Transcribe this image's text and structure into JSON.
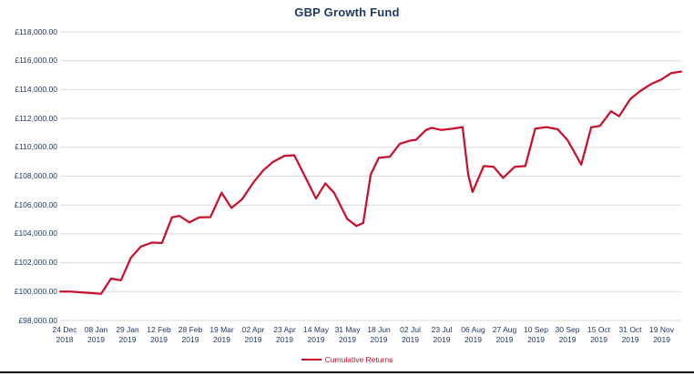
{
  "title": "GBP Growth Fund",
  "legend": {
    "label": "Cumulative Returns"
  },
  "colors": {
    "line": "#C8102E",
    "title_text": "#1F3864",
    "axis_text": "#1F3864",
    "gridline": "#D9D9D9",
    "legend_text": "#C8102E",
    "bottom_rule": "#000000",
    "background": "#FFFFFF"
  },
  "chart_data": {
    "type": "line",
    "title": "GBP Growth Fund",
    "series_name": "Cumulative Returns",
    "grid": "horizontal",
    "legend_position": "bottom",
    "y_axis": {
      "min": 98000,
      "max": 118000,
      "step": 2000,
      "tick_labels_top_to_bottom": [
        "£118,000.00",
        "£116,000.00",
        "£114,000.00",
        "£112,000.00",
        "£110,000.00",
        "£108,000.00",
        "£106,000.00",
        "£104,000.00",
        "£102,000.00",
        "£100,000.00",
        "£98,000.00"
      ]
    },
    "x_axis": {
      "tick_labels": [
        [
          "24 Dec",
          "2018"
        ],
        [
          "08 Jan",
          "2019"
        ],
        [
          "29 Jan",
          "2019"
        ],
        [
          "12 Feb",
          "2019"
        ],
        [
          "28 Feb",
          "2019"
        ],
        [
          "19 Mar",
          "2019"
        ],
        [
          "02 Apr",
          "2019"
        ],
        [
          "23 Apr",
          "2019"
        ],
        [
          "14 May",
          "2019"
        ],
        [
          "31 May",
          "2019"
        ],
        [
          "18 Jun",
          "2019"
        ],
        [
          "02 Jul",
          "2019"
        ],
        [
          "23 Jul",
          "2019"
        ],
        [
          "06 Aug",
          "2019"
        ],
        [
          "27 Aug",
          "2019"
        ],
        [
          "10 Sep",
          "2019"
        ],
        [
          "30 Sep",
          "2019"
        ],
        [
          "15 Oct",
          "2019"
        ],
        [
          "31 Oct",
          "2019"
        ],
        [
          "19 Nov",
          "2019"
        ]
      ],
      "first_tick_pos_pct": 0.733,
      "tick_step_pct": 5.059
    },
    "points_pos_pct_value": [
      [
        0.0,
        100000
      ],
      [
        1.6,
        100000
      ],
      [
        3.4,
        99950
      ],
      [
        5.0,
        99900
      ],
      [
        6.6,
        99850
      ],
      [
        8.2,
        100900
      ],
      [
        9.8,
        100780
      ],
      [
        11.4,
        102350
      ],
      [
        13.0,
        103120
      ],
      [
        14.8,
        103400
      ],
      [
        16.4,
        103360
      ],
      [
        18.0,
        105150
      ],
      [
        19.2,
        105250
      ],
      [
        20.8,
        104800
      ],
      [
        22.4,
        105150
      ],
      [
        24.2,
        105160
      ],
      [
        26.0,
        106850
      ],
      [
        27.6,
        105800
      ],
      [
        29.3,
        106400
      ],
      [
        31.1,
        107550
      ],
      [
        32.7,
        108400
      ],
      [
        34.3,
        109000
      ],
      [
        36.1,
        109400
      ],
      [
        37.7,
        109450
      ],
      [
        39.4,
        108000
      ],
      [
        41.2,
        106450
      ],
      [
        42.7,
        107500
      ],
      [
        44.1,
        106850
      ],
      [
        46.2,
        105050
      ],
      [
        47.7,
        104550
      ],
      [
        48.8,
        104750
      ],
      [
        50.0,
        108100
      ],
      [
        51.3,
        109270
      ],
      [
        53.1,
        109350
      ],
      [
        54.7,
        110250
      ],
      [
        56.5,
        110480
      ],
      [
        57.3,
        110520
      ],
      [
        58.9,
        111200
      ],
      [
        59.8,
        111350
      ],
      [
        61.4,
        111200
      ],
      [
        63.0,
        111280
      ],
      [
        64.8,
        111400
      ],
      [
        65.7,
        108100
      ],
      [
        66.4,
        106900
      ],
      [
        68.2,
        108700
      ],
      [
        69.8,
        108650
      ],
      [
        71.3,
        107880
      ],
      [
        73.2,
        108650
      ],
      [
        74.9,
        108700
      ],
      [
        76.5,
        111300
      ],
      [
        78.3,
        111400
      ],
      [
        80.1,
        111250
      ],
      [
        81.7,
        110500
      ],
      [
        83.9,
        108800
      ],
      [
        85.5,
        111380
      ],
      [
        86.9,
        111480
      ],
      [
        88.7,
        112500
      ],
      [
        90.0,
        112150
      ],
      [
        91.8,
        113350
      ],
      [
        93.4,
        113900
      ],
      [
        95.2,
        114400
      ],
      [
        96.8,
        114700
      ],
      [
        98.4,
        115150
      ],
      [
        100.0,
        115250
      ]
    ]
  }
}
